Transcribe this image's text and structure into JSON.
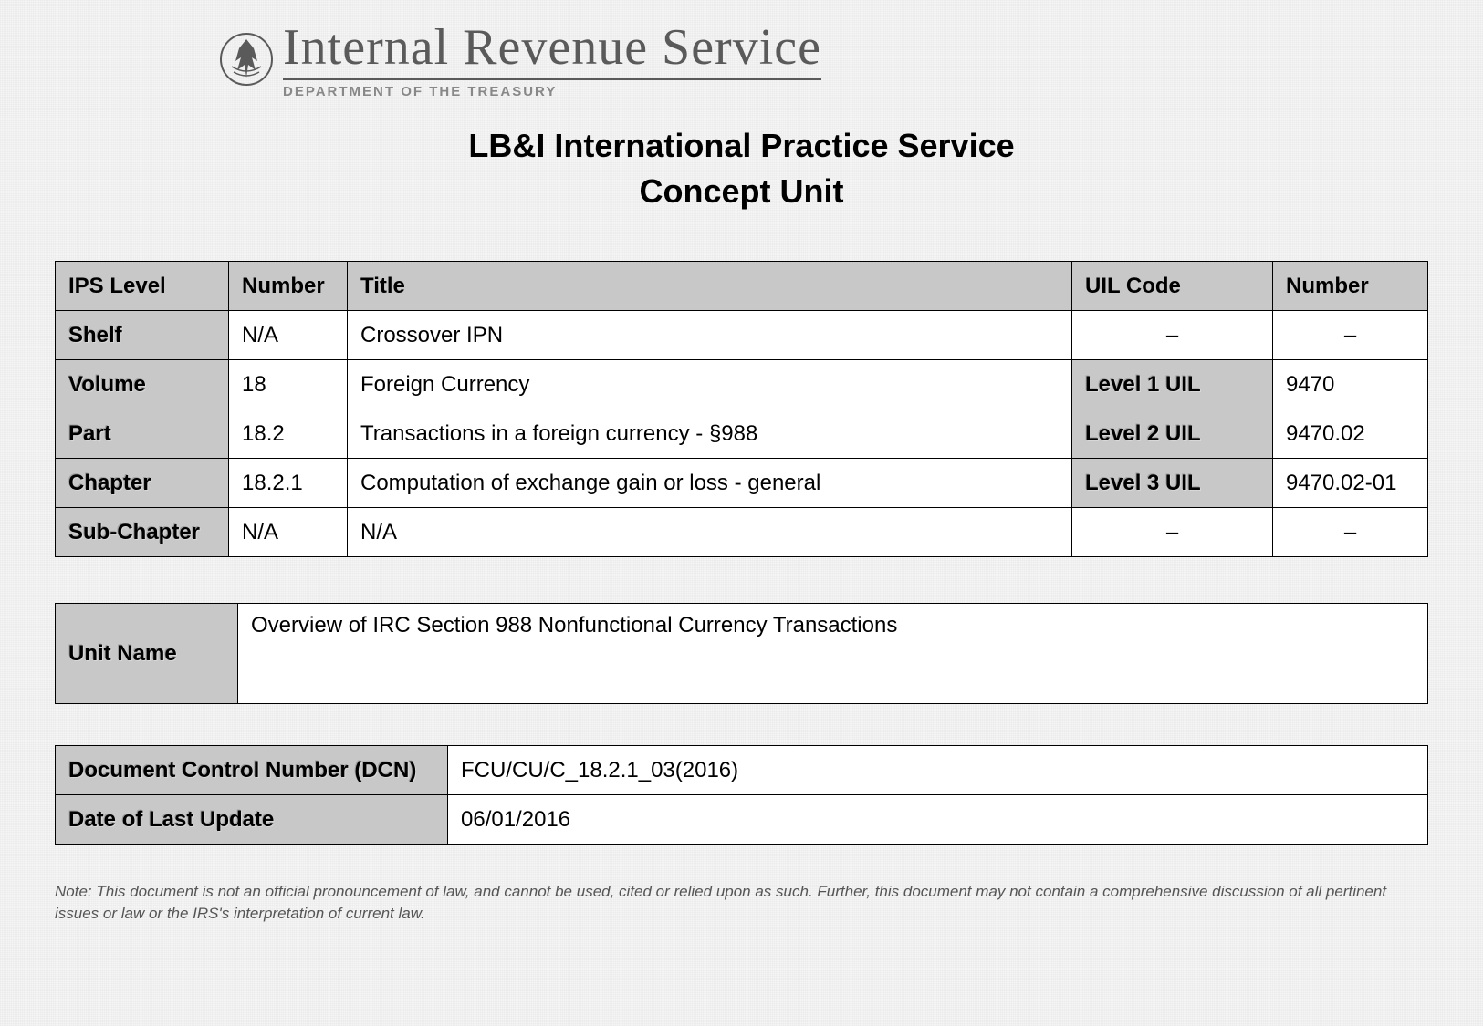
{
  "header": {
    "org_name": "Internal Revenue Service",
    "dept_name": "DEPARTMENT OF THE TREASURY",
    "main_title": "LB&I International Practice Service",
    "sub_title": "Concept Unit"
  },
  "ips_table": {
    "headers": [
      "IPS Level",
      "Number",
      "Title",
      "UIL Code",
      "Number"
    ],
    "rows": [
      {
        "level": "Shelf",
        "number": "N/A",
        "title": "Crossover IPN",
        "uil_label": "–",
        "uil_number": "–",
        "uil_is_dash": true
      },
      {
        "level": "Volume",
        "number": "18",
        "title": "Foreign Currency",
        "uil_label": "Level 1 UIL",
        "uil_number": "9470",
        "uil_is_dash": false
      },
      {
        "level": "Part",
        "number": "18.2",
        "title": "Transactions in a foreign currency - §988",
        "uil_label": "Level 2 UIL",
        "uil_number": "9470.02",
        "uil_is_dash": false
      },
      {
        "level": "Chapter",
        "number": "18.2.1",
        "title": "Computation of exchange gain or loss - general",
        "uil_label": "Level 3 UIL",
        "uil_number": "9470.02-01",
        "uil_is_dash": false
      },
      {
        "level": "Sub-Chapter",
        "number": "N/A",
        "title": "N/A",
        "uil_label": "–",
        "uil_number": "–",
        "uil_is_dash": true
      }
    ]
  },
  "unit_table": {
    "label": "Unit Name",
    "value": "Overview of IRC Section 988 Nonfunctional Currency Transactions"
  },
  "dcn_table": {
    "rows": [
      {
        "label": "Document Control Number (DCN)",
        "value": "FCU/CU/C_18.2.1_03(2016)"
      },
      {
        "label": "Date of Last Update",
        "value": "06/01/2016"
      }
    ]
  },
  "footer_note": "Note: This document is not an official pronouncement of law, and cannot be used, cited or relied upon as such.  Further, this document may not contain a comprehensive discussion of all pertinent issues or law or the IRS's interpretation of current law.",
  "colors": {
    "header_bg": "#c8c8c8",
    "border": "#000000",
    "text": "#000000",
    "page_bg": "#e8e8e8"
  }
}
